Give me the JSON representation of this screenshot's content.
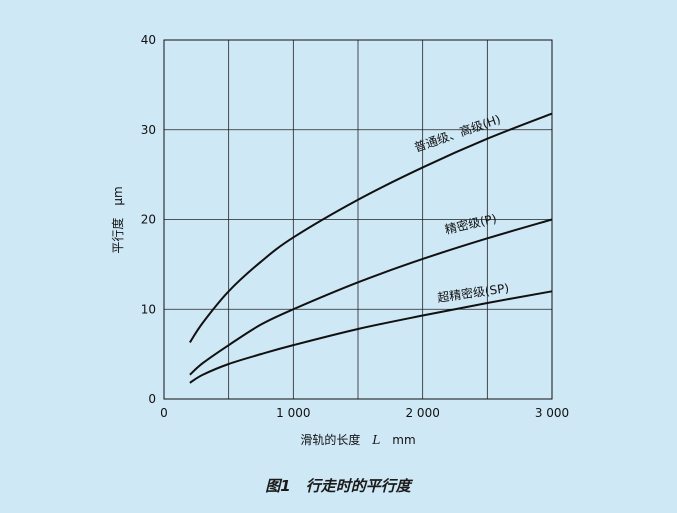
{
  "caption": "图1　行走时的平行度",
  "chart_data": {
    "type": "line",
    "xlabel_prefix": "滑轨的长度",
    "xlabel_var": "L",
    "xlabel_unit": "mm",
    "ylabel": "平行度",
    "ylabel_unit": "μm",
    "xlim": [
      0,
      3000
    ],
    "ylim": [
      0,
      40
    ],
    "x_ticks": [
      0,
      1000,
      2000,
      3000
    ],
    "x_tick_labels": [
      "0",
      "1 000",
      "2 000",
      "3 000"
    ],
    "y_ticks": [
      0,
      10,
      20,
      30,
      40
    ],
    "y_tick_labels": [
      "0",
      "10",
      "20",
      "30",
      "40"
    ],
    "x_grid": [
      0,
      500,
      1000,
      1500,
      2000,
      2500,
      3000
    ],
    "y_grid": [
      0,
      10,
      20,
      30,
      40
    ],
    "grid": true,
    "series": [
      {
        "name": "普通级、高级(H)",
        "x": [
          200,
          300,
          500,
          750,
          1000,
          1500,
          2000,
          2500,
          3000
        ],
        "y": [
          6.3,
          8.5,
          12,
          15.3,
          18,
          22.2,
          25.8,
          29,
          31.8
        ]
      },
      {
        "name": "精密级(P)",
        "x": [
          200,
          300,
          500,
          750,
          1000,
          1500,
          2000,
          2500,
          3000
        ],
        "y": [
          2.7,
          4,
          6,
          8.3,
          10,
          13,
          15.6,
          17.9,
          20
        ]
      },
      {
        "name": "超精密级(SP)",
        "x": [
          200,
          300,
          500,
          750,
          1000,
          1500,
          2000,
          2500,
          3000
        ],
        "y": [
          1.8,
          2.7,
          3.9,
          5,
          6,
          7.8,
          9.3,
          10.7,
          12
        ]
      }
    ]
  }
}
